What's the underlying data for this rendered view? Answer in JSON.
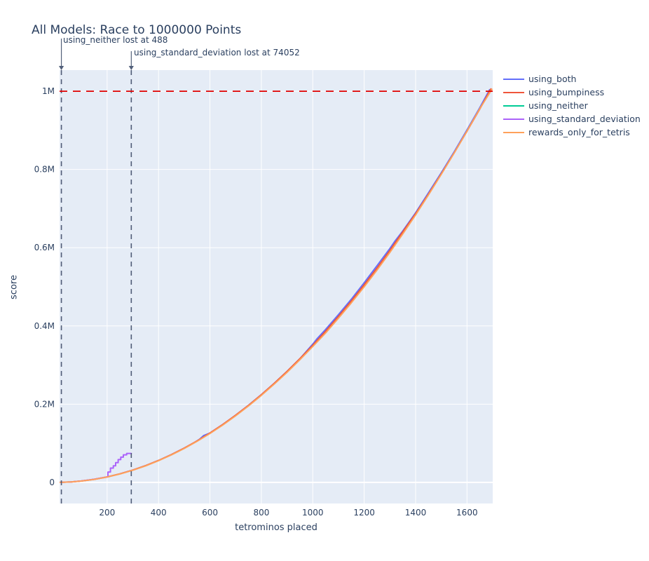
{
  "chart_data": {
    "type": "line",
    "title": "All Models: Race to 1000000 Points",
    "xlabel": "tetrominos placed",
    "ylabel": "score",
    "x_range": [
      15,
      1700
    ],
    "y_range": [
      -54000,
      1054000
    ],
    "grid": true,
    "legend_position": "right-top-outside",
    "plot_bg_color": "#e5ecf6",
    "grid_color": "#ffffff",
    "x_ticks": {
      "values": [
        200,
        400,
        600,
        800,
        1000,
        1200,
        1400,
        1600
      ],
      "labels": [
        "200",
        "400",
        "600",
        "800",
        "1000",
        "1200",
        "1400",
        "1600"
      ]
    },
    "y_ticks": {
      "values": [
        0,
        200000,
        400000,
        600000,
        800000,
        1000000
      ],
      "labels": [
        "0",
        "0.2M",
        "0.4M",
        "0.6M",
        "0.8M",
        "1M"
      ]
    },
    "finish_line": {
      "label": "Finish line",
      "y": 1000000,
      "color": "#e00000"
    },
    "loss_marker_lines": {
      "color": "#4f5b76",
      "x_values": [
        22,
        294
      ]
    },
    "annotations": [
      {
        "text": "using_neither lost at 488",
        "x": 22
      },
      {
        "text": "using_standard_deviation lost at 74052",
        "x": 294
      }
    ],
    "series": [
      {
        "name": "using_both",
        "color": "#636efa",
        "points": [
          [
            15,
            60
          ],
          [
            60,
            1300
          ],
          [
            100,
            3500
          ],
          [
            150,
            7900
          ],
          [
            200,
            14000
          ],
          [
            250,
            21900
          ],
          [
            300,
            31500
          ],
          [
            350,
            42900
          ],
          [
            400,
            56000
          ],
          [
            450,
            70900
          ],
          [
            500,
            87600
          ],
          [
            540,
            102000
          ],
          [
            560,
            110500
          ],
          [
            575,
            119500
          ],
          [
            600,
            126100
          ],
          [
            650,
            148100
          ],
          [
            700,
            171600
          ],
          [
            750,
            197100
          ],
          [
            800,
            224200
          ],
          [
            850,
            253100
          ],
          [
            900,
            283700
          ],
          [
            950,
            316100
          ],
          [
            1000,
            353500
          ],
          [
            1015,
            366000
          ],
          [
            1050,
            391000
          ],
          [
            1100,
            428800
          ],
          [
            1150,
            468200
          ],
          [
            1200,
            510400
          ],
          [
            1250,
            554200
          ],
          [
            1300,
            598000
          ],
          [
            1320,
            617000
          ],
          [
            1350,
            642600
          ],
          [
            1400,
            689400
          ],
          [
            1450,
            740000
          ],
          [
            1500,
            791600
          ],
          [
            1550,
            845200
          ],
          [
            1600,
            901000
          ],
          [
            1650,
            958500
          ],
          [
            1688,
            1004000
          ]
        ]
      },
      {
        "name": "using_bumpiness",
        "color": "#ef553b",
        "points": [
          [
            15,
            55
          ],
          [
            60,
            1260
          ],
          [
            100,
            3500
          ],
          [
            150,
            7880
          ],
          [
            200,
            14010
          ],
          [
            250,
            21890
          ],
          [
            300,
            31530
          ],
          [
            350,
            42920
          ],
          [
            400,
            56050
          ],
          [
            450,
            70940
          ],
          [
            500,
            87580
          ],
          [
            550,
            105970
          ],
          [
            600,
            126130
          ],
          [
            650,
            148060
          ],
          [
            700,
            171650
          ],
          [
            750,
            197020
          ],
          [
            800,
            224160
          ],
          [
            850,
            253060
          ],
          [
            900,
            283740
          ],
          [
            950,
            316180
          ],
          [
            1000,
            350390
          ],
          [
            1050,
            386370
          ],
          [
            1100,
            424120
          ],
          [
            1150,
            463640
          ],
          [
            1200,
            504930
          ],
          [
            1250,
            547980
          ],
          [
            1300,
            592810
          ],
          [
            1350,
            640400
          ],
          [
            1400,
            686760
          ],
          [
            1450,
            736890
          ],
          [
            1500,
            788790
          ],
          [
            1550,
            842460
          ],
          [
            1600,
            897900
          ],
          [
            1650,
            955100
          ],
          [
            1693,
            1006000
          ]
        ]
      },
      {
        "name": "using_neither",
        "color": "#00cc96",
        "points": [
          [
            15,
            30
          ],
          [
            22,
            488
          ]
        ]
      },
      {
        "name": "using_standard_deviation",
        "color": "#ab63fa",
        "points": [
          [
            15,
            55
          ],
          [
            60,
            1280
          ],
          [
            100,
            3550
          ],
          [
            150,
            7950
          ],
          [
            195,
            13600
          ],
          [
            203,
            14600
          ],
          [
            203,
            26500
          ],
          [
            213,
            26500
          ],
          [
            213,
            36500
          ],
          [
            224,
            36500
          ],
          [
            224,
            42500
          ],
          [
            233,
            42500
          ],
          [
            233,
            50500
          ],
          [
            243,
            50500
          ],
          [
            243,
            58200
          ],
          [
            253,
            58200
          ],
          [
            253,
            64500
          ],
          [
            263,
            64500
          ],
          [
            263,
            70500
          ],
          [
            276,
            70500
          ],
          [
            276,
            74052
          ],
          [
            294,
            74052
          ]
        ]
      },
      {
        "name": "rewards_only_for_tetris",
        "color": "#ffa15a",
        "points": [
          [
            15,
            50
          ],
          [
            60,
            1200
          ],
          [
            100,
            3400
          ],
          [
            150,
            7700
          ],
          [
            200,
            13800
          ],
          [
            250,
            21500
          ],
          [
            300,
            31000
          ],
          [
            350,
            42300
          ],
          [
            400,
            55500
          ],
          [
            450,
            70300
          ],
          [
            500,
            86800
          ],
          [
            550,
            105000
          ],
          [
            600,
            125000
          ],
          [
            650,
            146700
          ],
          [
            700,
            170300
          ],
          [
            750,
            195500
          ],
          [
            800,
            222500
          ],
          [
            850,
            251200
          ],
          [
            900,
            281500
          ],
          [
            950,
            313700
          ],
          [
            1000,
            347500
          ],
          [
            1050,
            382100
          ],
          [
            1100,
            419800
          ],
          [
            1150,
            459100
          ],
          [
            1200,
            500000
          ],
          [
            1250,
            543000
          ],
          [
            1300,
            588000
          ],
          [
            1350,
            635000
          ],
          [
            1400,
            684000
          ],
          [
            1450,
            735000
          ],
          [
            1500,
            787600
          ],
          [
            1550,
            842000
          ],
          [
            1600,
            898200
          ],
          [
            1650,
            956000
          ],
          [
            1697,
            1005000
          ]
        ]
      }
    ]
  }
}
